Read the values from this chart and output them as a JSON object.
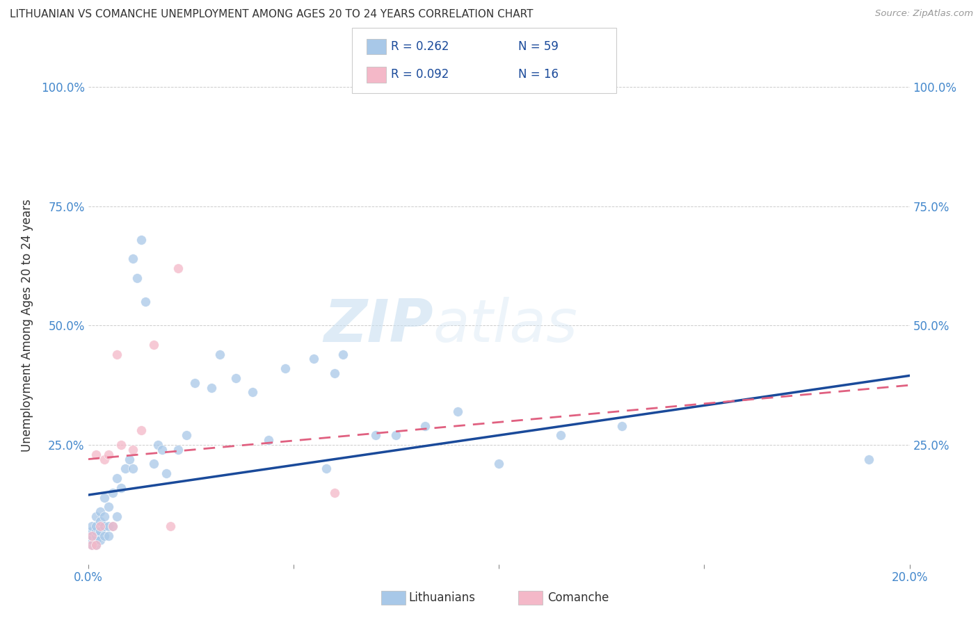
{
  "title": "LITHUANIAN VS COMANCHE UNEMPLOYMENT AMONG AGES 20 TO 24 YEARS CORRELATION CHART",
  "source": "Source: ZipAtlas.com",
  "ylabel": "Unemployment Among Ages 20 to 24 years",
  "xlim": [
    0.0,
    0.2
  ],
  "ylim": [
    0.0,
    1.0
  ],
  "blue_color": "#a8c8e8",
  "pink_color": "#f4b8c8",
  "blue_line_color": "#1a4a9a",
  "pink_line_color": "#e06080",
  "legend_blue_r": "R = 0.262",
  "legend_blue_n": "N = 59",
  "legend_pink_r": "R = 0.092",
  "legend_pink_n": "N = 16",
  "legend_blue_label": "Lithuanians",
  "legend_pink_label": "Comanche",
  "watermark_zip": "ZIP",
  "watermark_atlas": "atlas",
  "lit_x": [
    0.001,
    0.001,
    0.001,
    0.001,
    0.001,
    0.002,
    0.002,
    0.002,
    0.002,
    0.002,
    0.002,
    0.003,
    0.003,
    0.003,
    0.003,
    0.004,
    0.004,
    0.004,
    0.004,
    0.005,
    0.005,
    0.005,
    0.006,
    0.006,
    0.007,
    0.007,
    0.008,
    0.009,
    0.01,
    0.011,
    0.011,
    0.012,
    0.013,
    0.014,
    0.016,
    0.017,
    0.018,
    0.019,
    0.022,
    0.024,
    0.026,
    0.03,
    0.032,
    0.036,
    0.04,
    0.044,
    0.048,
    0.055,
    0.058,
    0.06,
    0.062,
    0.07,
    0.075,
    0.082,
    0.09,
    0.1,
    0.115,
    0.13,
    0.19
  ],
  "lit_y": [
    0.04,
    0.05,
    0.06,
    0.07,
    0.08,
    0.04,
    0.05,
    0.06,
    0.07,
    0.08,
    0.1,
    0.05,
    0.07,
    0.09,
    0.11,
    0.06,
    0.08,
    0.1,
    0.14,
    0.06,
    0.08,
    0.12,
    0.08,
    0.15,
    0.1,
    0.18,
    0.16,
    0.2,
    0.22,
    0.2,
    0.64,
    0.6,
    0.68,
    0.55,
    0.21,
    0.25,
    0.24,
    0.19,
    0.24,
    0.27,
    0.38,
    0.37,
    0.44,
    0.39,
    0.36,
    0.26,
    0.41,
    0.43,
    0.2,
    0.4,
    0.44,
    0.27,
    0.27,
    0.29,
    0.32,
    0.21,
    0.27,
    0.29,
    0.22
  ],
  "com_x": [
    0.001,
    0.001,
    0.002,
    0.002,
    0.003,
    0.004,
    0.005,
    0.006,
    0.007,
    0.008,
    0.011,
    0.013,
    0.016,
    0.02,
    0.022,
    0.06
  ],
  "com_y": [
    0.04,
    0.06,
    0.04,
    0.23,
    0.08,
    0.22,
    0.23,
    0.08,
    0.44,
    0.25,
    0.24,
    0.28,
    0.46,
    0.08,
    0.62,
    0.15
  ],
  "blue_trend_x0": 0.0,
  "blue_trend_y0": 0.145,
  "blue_trend_x1": 0.2,
  "blue_trend_y1": 0.395,
  "pink_trend_x0": 0.0,
  "pink_trend_y0": 0.22,
  "pink_trend_x1": 0.2,
  "pink_trend_y1": 0.375
}
